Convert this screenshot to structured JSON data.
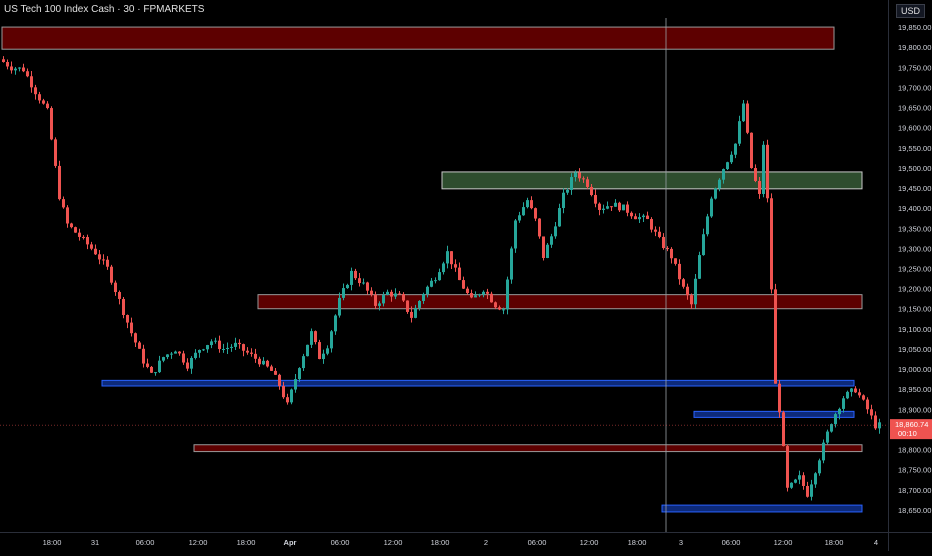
{
  "header": {
    "title": "US Tech 100 Index Cash · 30 · FPMARKETS",
    "currency": "USD"
  },
  "price_tag": {
    "value": "18,860.74",
    "countdown": "00:10"
  },
  "colors": {
    "up": "#26a69a",
    "down": "#ef5350",
    "red_zone": "#5d0000",
    "green_zone": "#2e4d2e",
    "blue_zone": "#2962ff"
  },
  "chart_data": {
    "type": "candlestick",
    "title": "US Tech 100 Index Cash · 30 · FPMARKETS",
    "ylim": [
      18620,
      19880
    ],
    "y_ticks": [
      "19,850.00",
      "19,800.00",
      "19,750.00",
      "19,700.00",
      "19,650.00",
      "19,600.00",
      "19,550.00",
      "19,500.00",
      "19,450.00",
      "19,400.00",
      "19,350.00",
      "19,300.00",
      "19,250.00",
      "19,200.00",
      "19,150.00",
      "19,100.00",
      "19,050.00",
      "19,000.00",
      "18,950.00",
      "18,900.00",
      "18,850.00",
      "18,800.00",
      "18,750.00",
      "18,700.00",
      "18,650.00"
    ],
    "x_ticks": [
      "18:00",
      "31",
      "06:00",
      "12:00",
      "18:00",
      "Apr",
      "06:00",
      "12:00",
      "18:00",
      "2",
      "06:00",
      "12:00",
      "18:00",
      "3",
      "06:00",
      "12:00",
      "18:00",
      "4"
    ],
    "price_path": [
      [
        0,
        19770
      ],
      [
        3,
        19750
      ],
      [
        6,
        19745
      ],
      [
        9,
        19690
      ],
      [
        12,
        19640
      ],
      [
        15,
        19430
      ],
      [
        17,
        19360
      ],
      [
        20,
        19330
      ],
      [
        24,
        19290
      ],
      [
        27,
        19250
      ],
      [
        30,
        19170
      ],
      [
        33,
        19090
      ],
      [
        36,
        19020
      ],
      [
        38,
        18985
      ],
      [
        41,
        19030
      ],
      [
        44,
        19050
      ],
      [
        47,
        19010
      ],
      [
        50,
        19050
      ],
      [
        53,
        19070
      ],
      [
        56,
        19050
      ],
      [
        59,
        19060
      ],
      [
        62,
        19040
      ],
      [
        65,
        19020
      ],
      [
        68,
        18995
      ],
      [
        70,
        18960
      ],
      [
        72,
        18910
      ],
      [
        75,
        19010
      ],
      [
        78,
        19090
      ],
      [
        80,
        19030
      ],
      [
        82,
        19060
      ],
      [
        85,
        19170
      ],
      [
        88,
        19240
      ],
      [
        91,
        19210
      ],
      [
        94,
        19160
      ],
      [
        97,
        19190
      ],
      [
        100,
        19180
      ],
      [
        103,
        19130
      ],
      [
        106,
        19190
      ],
      [
        109,
        19230
      ],
      [
        112,
        19290
      ],
      [
        115,
        19220
      ],
      [
        118,
        19170
      ],
      [
        121,
        19200
      ],
      [
        124,
        19160
      ],
      [
        126,
        19150
      ],
      [
        129,
        19370
      ],
      [
        132,
        19420
      ],
      [
        134,
        19370
      ],
      [
        136,
        19280
      ],
      [
        138,
        19330
      ],
      [
        141,
        19430
      ],
      [
        144,
        19490
      ],
      [
        147,
        19460
      ],
      [
        150,
        19400
      ],
      [
        153,
        19410
      ],
      [
        156,
        19400
      ],
      [
        159,
        19380
      ],
      [
        162,
        19370
      ],
      [
        165,
        19320
      ],
      [
        168,
        19280
      ],
      [
        171,
        19200
      ],
      [
        173,
        19160
      ],
      [
        175,
        19280
      ],
      [
        178,
        19430
      ],
      [
        181,
        19500
      ],
      [
        184,
        19560
      ],
      [
        186,
        19660
      ],
      [
        188,
        19500
      ],
      [
        190,
        19430
      ],
      [
        191,
        19560
      ],
      [
        192,
        19420
      ],
      [
        193,
        19200
      ],
      [
        194,
        18960
      ],
      [
        195,
        18900
      ],
      [
        197,
        18700
      ],
      [
        200,
        18730
      ],
      [
        202,
        18690
      ],
      [
        205,
        18780
      ],
      [
        208,
        18870
      ],
      [
        211,
        18930
      ],
      [
        214,
        18950
      ],
      [
        217,
        18900
      ],
      [
        218,
        18880
      ],
      [
        219,
        18860
      ]
    ],
    "candles_count": 220,
    "zones": [
      {
        "type": "supply",
        "color": "red",
        "top": 19850,
        "bottom": 19795,
        "start": 0,
        "end": 208
      },
      {
        "type": "demand",
        "color": "green",
        "top": 19490,
        "bottom": 19448,
        "start": 110,
        "end": 215
      },
      {
        "type": "supply",
        "color": "red",
        "top": 19185,
        "bottom": 19150,
        "start": 64,
        "end": 215
      },
      {
        "type": "level",
        "color": "blue",
        "top": 18972,
        "bottom": 18958,
        "start": 25,
        "end": 213
      },
      {
        "type": "level",
        "color": "blue",
        "top": 18895,
        "bottom": 18880,
        "start": 173,
        "end": 213
      },
      {
        "type": "level",
        "color": "red",
        "top": 18812,
        "bottom": 18795,
        "start": 48,
        "end": 215
      },
      {
        "type": "level",
        "color": "blue",
        "top": 18662,
        "bottom": 18645,
        "start": 165,
        "end": 215
      }
    ],
    "last_price": 18860.74,
    "crosshair_x": 164
  }
}
